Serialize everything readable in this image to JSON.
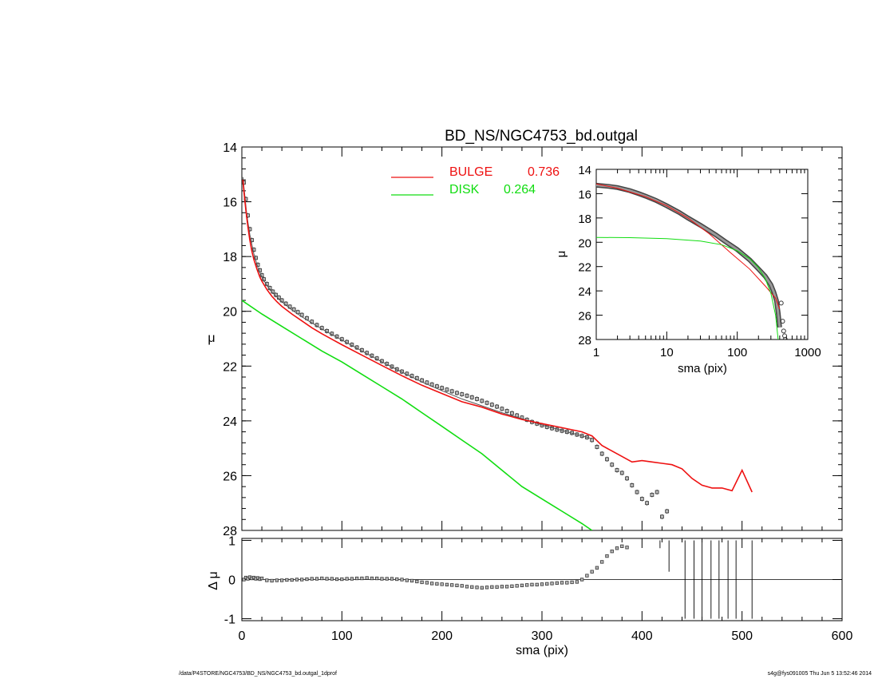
{
  "footer": {
    "path": "/data/P4STORE/NGC4753/BD_NS/NGC4753_bd.outgal_1dprof",
    "stamp": "s4g@fys091005  Thu Jun  5 13:52:46 2014"
  },
  "colors": {
    "bulge": "#ee1111",
    "disk": "#11dd11",
    "data": "#555555",
    "axes": "#000000"
  },
  "chart_data": [
    {
      "id": "main",
      "type": "scatter",
      "title": "BD_NS/NGC4753_bd.outgal",
      "xlabel": "",
      "ylabel": "μ",
      "xlim": [
        0,
        600
      ],
      "ylim": [
        28,
        14
      ],
      "y_inverted": true,
      "yticks": [
        14,
        16,
        18,
        20,
        22,
        24,
        26,
        28
      ],
      "legend": {
        "placement": "top-center",
        "entries": [
          {
            "label": "BULGE",
            "value": "0.736",
            "color": "#ee1111"
          },
          {
            "label": "DISK",
            "value": "0.264",
            "color": "#11dd11"
          }
        ]
      },
      "series": [
        {
          "name": "data",
          "style": "open-squares-with-errorbars",
          "x": [
            2,
            4,
            6,
            8,
            10,
            12,
            14,
            16,
            18,
            20,
            22,
            25,
            28,
            31,
            34,
            37,
            40,
            44,
            48,
            52,
            56,
            60,
            65,
            70,
            75,
            80,
            85,
            90,
            95,
            100,
            105,
            110,
            115,
            120,
            125,
            130,
            135,
            140,
            145,
            150,
            155,
            160,
            165,
            170,
            175,
            180,
            185,
            190,
            195,
            200,
            205,
            210,
            215,
            220,
            225,
            230,
            235,
            240,
            245,
            250,
            255,
            260,
            265,
            270,
            275,
            280,
            285,
            290,
            295,
            300,
            305,
            310,
            315,
            320,
            325,
            330,
            335,
            340,
            345,
            350,
            355,
            360,
            365,
            370,
            375,
            380,
            385,
            390,
            395,
            400,
            405,
            410,
            415,
            420,
            425
          ],
          "y": [
            15.3,
            15.9,
            16.5,
            17.0,
            17.4,
            17.75,
            18.05,
            18.3,
            18.5,
            18.68,
            18.83,
            19.0,
            19.15,
            19.28,
            19.4,
            19.5,
            19.6,
            19.72,
            19.83,
            19.93,
            20.03,
            20.13,
            20.25,
            20.38,
            20.5,
            20.61,
            20.72,
            20.82,
            20.92,
            21.02,
            21.12,
            21.22,
            21.32,
            21.42,
            21.52,
            21.62,
            21.72,
            21.82,
            21.92,
            22.02,
            22.12,
            22.2,
            22.28,
            22.36,
            22.44,
            22.52,
            22.6,
            22.67,
            22.74,
            22.8,
            22.86,
            22.92,
            22.98,
            23.03,
            23.08,
            23.14,
            23.2,
            23.27,
            23.34,
            23.41,
            23.48,
            23.56,
            23.64,
            23.72,
            23.8,
            23.88,
            23.96,
            24.04,
            24.1,
            24.16,
            24.22,
            24.27,
            24.32,
            24.36,
            24.4,
            24.44,
            24.5,
            24.55,
            24.6,
            24.7,
            24.95,
            25.2,
            25.4,
            25.6,
            25.8,
            25.9,
            26.1,
            26.35,
            26.6,
            26.85,
            27.0,
            26.7,
            26.6,
            27.5,
            27.3
          ]
        },
        {
          "name": "model",
          "style": "thin-line",
          "color": "#555555",
          "x": [
            1,
            3,
            5,
            8,
            12,
            16,
            20,
            25,
            30,
            40,
            50,
            60,
            80,
            100,
            120,
            140,
            160,
            180,
            200,
            220,
            240,
            260,
            280,
            300,
            320,
            340,
            350
          ],
          "y": [
            15.1,
            15.8,
            16.5,
            17.2,
            17.9,
            18.4,
            18.75,
            19.05,
            19.3,
            19.65,
            19.95,
            20.2,
            20.65,
            21.05,
            21.45,
            21.85,
            22.22,
            22.58,
            22.9,
            23.2,
            23.45,
            23.7,
            23.92,
            24.15,
            24.35,
            24.55,
            24.65
          ]
        },
        {
          "name": "BULGE",
          "style": "line",
          "color": "#ee1111",
          "x": [
            1,
            2,
            4,
            6,
            8,
            10,
            12,
            15,
            18,
            20,
            25,
            30,
            35,
            40,
            50,
            60,
            70,
            80,
            90,
            100,
            120,
            140,
            160,
            180,
            200,
            220,
            240,
            260,
            280,
            300,
            320,
            340,
            350,
            360,
            370,
            380,
            390,
            400,
            410,
            420,
            430,
            440,
            450,
            460,
            470,
            480,
            490,
            500,
            510
          ],
          "y": [
            15.2,
            15.6,
            16.3,
            16.9,
            17.4,
            17.8,
            18.1,
            18.45,
            18.75,
            18.9,
            19.2,
            19.45,
            19.65,
            19.82,
            20.1,
            20.35,
            20.6,
            20.82,
            21.02,
            21.22,
            21.6,
            21.98,
            22.35,
            22.7,
            23.0,
            23.3,
            23.5,
            23.75,
            23.95,
            24.1,
            24.25,
            24.4,
            24.55,
            24.9,
            25.1,
            25.3,
            25.5,
            25.45,
            25.5,
            25.55,
            25.6,
            25.75,
            26.1,
            26.35,
            26.45,
            26.45,
            26.55,
            25.8,
            26.6
          ]
        },
        {
          "name": "DISK",
          "style": "line",
          "color": "#11dd11",
          "x": [
            0,
            20,
            40,
            60,
            80,
            100,
            120,
            140,
            160,
            180,
            200,
            220,
            240,
            260,
            280,
            300,
            320,
            340,
            350
          ],
          "y": [
            19.6,
            20.1,
            20.55,
            21.0,
            21.45,
            21.85,
            22.3,
            22.75,
            23.2,
            23.7,
            24.2,
            24.7,
            25.2,
            25.8,
            26.4,
            26.85,
            27.3,
            27.75,
            28.0
          ]
        }
      ]
    },
    {
      "id": "residual",
      "type": "scatter",
      "xlabel": "sma (pix)",
      "ylabel": "Δ μ",
      "xlim": [
        0,
        600
      ],
      "ylim": [
        -1,
        1
      ],
      "xticks": [
        0,
        100,
        200,
        300,
        400,
        500,
        600
      ],
      "yticks": [
        -1,
        0,
        1
      ],
      "series": [
        {
          "name": "residual",
          "style": "open-squares",
          "x": [
            2,
            4,
            6,
            8,
            10,
            12,
            14,
            16,
            18,
            20,
            25,
            30,
            35,
            40,
            45,
            50,
            55,
            60,
            65,
            70,
            75,
            80,
            85,
            90,
            95,
            100,
            105,
            110,
            115,
            120,
            125,
            130,
            135,
            140,
            145,
            150,
            155,
            160,
            165,
            170,
            175,
            180,
            185,
            190,
            195,
            200,
            205,
            210,
            215,
            220,
            225,
            230,
            235,
            240,
            245,
            250,
            255,
            260,
            265,
            270,
            275,
            280,
            285,
            290,
            295,
            300,
            305,
            310,
            315,
            320,
            325,
            330,
            335,
            340,
            345,
            350,
            355,
            360,
            365,
            370,
            375,
            380,
            385
          ],
          "y": [
            0.0,
            0.05,
            0.02,
            0.06,
            0.03,
            0.05,
            0.02,
            0.04,
            0.01,
            0.03,
            -0.02,
            -0.03,
            -0.02,
            -0.02,
            -0.01,
            -0.01,
            0.0,
            0.0,
            0.01,
            0.02,
            0.02,
            0.03,
            0.02,
            0.02,
            0.01,
            0.01,
            0.02,
            0.02,
            0.03,
            0.03,
            0.04,
            0.03,
            0.03,
            0.02,
            0.02,
            0.02,
            0.01,
            0.0,
            -0.02,
            -0.03,
            -0.05,
            -0.07,
            -0.08,
            -0.1,
            -0.11,
            -0.12,
            -0.13,
            -0.14,
            -0.15,
            -0.16,
            -0.18,
            -0.19,
            -0.2,
            -0.21,
            -0.2,
            -0.19,
            -0.19,
            -0.18,
            -0.18,
            -0.17,
            -0.16,
            -0.15,
            -0.14,
            -0.13,
            -0.13,
            -0.12,
            -0.11,
            -0.1,
            -0.09,
            -0.08,
            -0.08,
            -0.07,
            -0.06,
            0.0,
            0.1,
            0.2,
            0.3,
            0.45,
            0.6,
            0.72,
            0.8,
            0.85,
            0.82
          ]
        },
        {
          "name": "spikes",
          "style": "vertical-lines",
          "x": [
            418,
            427,
            443,
            452,
            460,
            469,
            477,
            486,
            494,
            510
          ],
          "y_from": [
            0.8,
            0.2,
            -1,
            -1,
            -1,
            -1,
            -1,
            -1,
            -1,
            -1
          ],
          "y_to": [
            1,
            1,
            1,
            1,
            1,
            1,
            1,
            1,
            1,
            1
          ]
        }
      ]
    },
    {
      "id": "inset",
      "type": "scatter",
      "xlabel": "sma (pix)",
      "ylabel": "μ",
      "xscale": "log",
      "xlim": [
        1,
        1000
      ],
      "ylim": [
        28,
        14
      ],
      "y_inverted": true,
      "xticks": [
        1,
        10,
        100,
        1000
      ],
      "yticks": [
        14,
        16,
        18,
        20,
        22,
        24,
        26,
        28
      ],
      "series": [
        {
          "name": "data",
          "style": "thick-band",
          "x": [
            1,
            1.5,
            2,
            3,
            4,
            5,
            7,
            10,
            15,
            20,
            30,
            40,
            50,
            70,
            100,
            150,
            200,
            250,
            300,
            330,
            360,
            380,
            400
          ],
          "y": [
            15.3,
            15.4,
            15.5,
            15.75,
            16.0,
            16.2,
            16.55,
            17.0,
            17.55,
            18.0,
            18.6,
            19.05,
            19.4,
            20.0,
            20.6,
            21.45,
            22.2,
            22.8,
            23.5,
            24.1,
            24.8,
            25.8,
            27.0
          ]
        },
        {
          "name": "BULGE",
          "style": "line",
          "color": "#ee1111",
          "x": [
            1,
            2,
            5,
            10,
            20,
            40,
            80,
            150,
            250,
            350,
            400
          ],
          "y": [
            15.2,
            15.55,
            16.25,
            17.0,
            18.0,
            19.3,
            20.85,
            22.2,
            23.6,
            24.6,
            25.5
          ]
        },
        {
          "name": "DISK",
          "style": "line",
          "color": "#11dd11",
          "x": [
            1,
            3,
            10,
            30,
            60,
            100,
            150,
            200,
            250,
            300,
            350,
            380
          ],
          "y": [
            19.6,
            19.62,
            19.7,
            19.9,
            20.2,
            20.7,
            21.35,
            22.1,
            23.0,
            24.2,
            26.0,
            28.0
          ]
        },
        {
          "name": "tail-points",
          "style": "open-circles",
          "x": [
            420,
            440,
            455,
            470,
            480
          ],
          "y": [
            25.0,
            26.5,
            27.3,
            27.7,
            28.0
          ]
        }
      ]
    }
  ]
}
